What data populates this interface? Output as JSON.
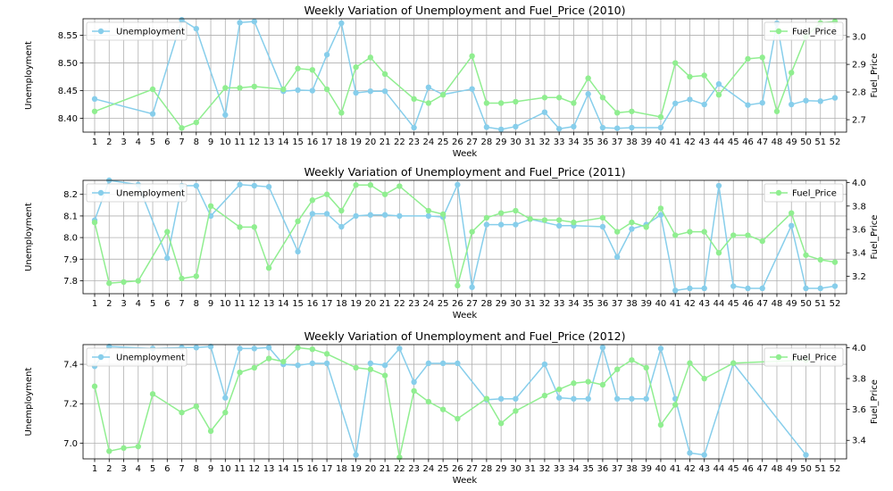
{
  "legend": {
    "unemployment": "Unemployment",
    "fuel": "Fuel_Price"
  },
  "colors": {
    "unemployment": "#87ceeb",
    "fuel": "#90ee90"
  },
  "chart_data": [
    {
      "type": "line",
      "title": "Weekly Variation of Unemployment and Fuel_Price (2010)",
      "xlabel": "Week",
      "ylabel": "Unemployment",
      "y2label": "Fuel_Price",
      "x_ticks": [
        1,
        2,
        3,
        4,
        5,
        6,
        7,
        8,
        9,
        10,
        11,
        12,
        13,
        14,
        15,
        16,
        17,
        18,
        19,
        20,
        21,
        22,
        23,
        24,
        25,
        26,
        27,
        28,
        29,
        30,
        31,
        32,
        33,
        34,
        35,
        36,
        37,
        38,
        39,
        40,
        41,
        42,
        43,
        44,
        45,
        46,
        47,
        48,
        49,
        50,
        51,
        52
      ],
      "ylim": [
        8.375,
        8.58
      ],
      "y_ticks": [
        8.4,
        8.45,
        8.5,
        8.55
      ],
      "y_tick_labels": [
        "8.40",
        "8.45",
        "8.50",
        "8.55"
      ],
      "y2lim": [
        2.655,
        3.065
      ],
      "y2_ticks": [
        2.7,
        2.8,
        2.9,
        3.0
      ],
      "y2_tick_labels": [
        "2.7",
        "2.8",
        "2.9",
        "3.0"
      ],
      "grid": true,
      "legend_placement": [
        "upper left",
        "upper right"
      ],
      "series": [
        {
          "name": "Unemployment",
          "axis": "left",
          "x": [
            1,
            5,
            7,
            8,
            10,
            11,
            12,
            14,
            15,
            16,
            17,
            18,
            19,
            20,
            21,
            23,
            24,
            25,
            27,
            28,
            29,
            30,
            32,
            33,
            34,
            35,
            36,
            37,
            38,
            40,
            41,
            42,
            43,
            44,
            46,
            47,
            48,
            49,
            50,
            51,
            52
          ],
          "values": [
            8.435,
            8.408,
            8.578,
            8.562,
            8.406,
            8.573,
            8.575,
            8.449,
            8.451,
            8.45,
            8.515,
            8.572,
            8.446,
            8.449,
            8.449,
            8.383,
            8.456,
            8.443,
            8.453,
            8.384,
            8.38,
            8.385,
            8.411,
            8.381,
            8.385,
            8.444,
            8.383,
            8.382,
            8.383,
            8.383,
            8.427,
            8.434,
            8.425,
            8.462,
            8.424,
            8.428,
            8.572,
            8.425,
            8.432,
            8.431,
            8.437
          ]
        },
        {
          "name": "Fuel_Price",
          "axis": "right",
          "x": [
            1,
            5,
            7,
            8,
            10,
            11,
            12,
            14,
            15,
            16,
            17,
            18,
            19,
            20,
            21,
            23,
            24,
            25,
            27,
            28,
            29,
            30,
            32,
            33,
            34,
            35,
            36,
            37,
            38,
            40,
            41,
            42,
            43,
            44,
            46,
            47,
            48,
            49,
            50,
            51,
            52
          ],
          "values": [
            2.73,
            2.81,
            2.67,
            2.69,
            2.815,
            2.815,
            2.82,
            2.81,
            2.885,
            2.88,
            2.81,
            2.725,
            2.89,
            2.925,
            2.865,
            2.775,
            2.76,
            2.79,
            2.93,
            2.76,
            2.76,
            2.765,
            2.78,
            2.78,
            2.76,
            2.85,
            2.78,
            2.725,
            2.73,
            2.71,
            2.905,
            2.855,
            2.86,
            2.79,
            2.92,
            2.925,
            2.73,
            2.87,
            3.0,
            3.05,
            3.055
          ]
        }
      ]
    },
    {
      "type": "line",
      "title": "Weekly Variation of Unemployment and Fuel_Price (2011)",
      "xlabel": "Week",
      "ylabel": "Unemployment",
      "y2label": "Fuel_Price",
      "x_ticks": [
        1,
        2,
        3,
        4,
        5,
        6,
        7,
        8,
        9,
        10,
        11,
        12,
        13,
        14,
        15,
        16,
        17,
        18,
        19,
        20,
        21,
        22,
        23,
        24,
        25,
        26,
        27,
        28,
        29,
        30,
        31,
        32,
        33,
        34,
        35,
        36,
        37,
        38,
        39,
        40,
        41,
        42,
        43,
        44,
        45,
        46,
        47,
        48,
        49,
        50,
        51,
        52
      ],
      "ylim": [
        7.74,
        8.265
      ],
      "y_ticks": [
        7.8,
        7.9,
        8.0,
        8.1,
        8.2
      ],
      "y_tick_labels": [
        "7.8",
        "7.9",
        "8.0",
        "8.1",
        "8.2"
      ],
      "y2lim": [
        3.05,
        4.02
      ],
      "y2_ticks": [
        3.2,
        3.4,
        3.6,
        3.8,
        4.0
      ],
      "y2_tick_labels": [
        "3.2",
        "3.4",
        "3.6",
        "3.8",
        "4.0"
      ],
      "grid": true,
      "legend_placement": [
        "upper left",
        "upper right"
      ],
      "series": [
        {
          "name": "Unemployment",
          "axis": "left",
          "x": [
            1,
            2,
            4,
            6,
            7,
            8,
            9,
            11,
            12,
            13,
            15,
            16,
            17,
            18,
            19,
            20,
            21,
            22,
            24,
            25,
            26,
            27,
            28,
            29,
            30,
            31,
            33,
            34,
            36,
            37,
            38,
            39,
            40,
            41,
            42,
            43,
            44,
            45,
            46,
            47,
            49,
            50,
            51,
            52
          ],
          "values": [
            8.08,
            8.265,
            8.245,
            7.905,
            8.24,
            8.24,
            8.1,
            8.245,
            8.24,
            8.235,
            7.935,
            8.11,
            8.11,
            8.05,
            8.1,
            8.105,
            8.105,
            8.1,
            8.1,
            8.095,
            8.245,
            7.77,
            8.06,
            8.06,
            8.06,
            8.085,
            8.055,
            8.055,
            8.05,
            7.91,
            8.04,
            8.06,
            8.105,
            7.755,
            7.765,
            7.765,
            8.24,
            7.775,
            7.765,
            7.765,
            8.055,
            7.765,
            7.765,
            7.775
          ]
        },
        {
          "name": "Fuel_Price",
          "axis": "right",
          "x": [
            1,
            2,
            3,
            4,
            6,
            7,
            8,
            9,
            11,
            12,
            13,
            15,
            16,
            17,
            18,
            19,
            20,
            21,
            22,
            24,
            25,
            26,
            27,
            28,
            29,
            30,
            31,
            32,
            33,
            34,
            36,
            37,
            38,
            39,
            40,
            41,
            42,
            43,
            44,
            45,
            46,
            47,
            49,
            50,
            51,
            52
          ],
          "values": [
            3.66,
            3.14,
            3.15,
            3.16,
            3.58,
            3.18,
            3.2,
            3.8,
            3.62,
            3.62,
            3.27,
            3.67,
            3.85,
            3.9,
            3.76,
            3.98,
            3.98,
            3.9,
            3.97,
            3.76,
            3.73,
            3.12,
            3.58,
            3.7,
            3.74,
            3.76,
            3.69,
            3.68,
            3.68,
            3.66,
            3.7,
            3.58,
            3.66,
            3.62,
            3.78,
            3.55,
            3.58,
            3.58,
            3.4,
            3.55,
            3.55,
            3.5,
            3.74,
            3.38,
            3.34,
            3.32
          ]
        }
      ]
    },
    {
      "type": "line",
      "title": "Weekly Variation of Unemployment and Fuel_Price (2012)",
      "xlabel": "Week",
      "ylabel": "Unemployment",
      "y2label": "Fuel_Price",
      "x_ticks": [
        1,
        2,
        3,
        4,
        5,
        6,
        7,
        8,
        9,
        10,
        11,
        12,
        13,
        14,
        15,
        16,
        17,
        18,
        19,
        20,
        21,
        22,
        23,
        24,
        25,
        26,
        27,
        28,
        29,
        30,
        31,
        32,
        33,
        34,
        35,
        36,
        37,
        38,
        39,
        40,
        41,
        42,
        43,
        44,
        45,
        46,
        47,
        48,
        49,
        50,
        51,
        52
      ],
      "ylim": [
        6.92,
        7.5
      ],
      "y_ticks": [
        7.0,
        7.2,
        7.4
      ],
      "y_tick_labels": [
        "7.0",
        "7.2",
        "7.4"
      ],
      "y2lim": [
        3.28,
        4.02
      ],
      "y2_ticks": [
        3.4,
        3.6,
        3.8,
        4.0
      ],
      "y2_tick_labels": [
        "3.4",
        "3.6",
        "3.8",
        "4.0"
      ],
      "grid": true,
      "legend_placement": [
        "upper left",
        "upper right"
      ],
      "series": [
        {
          "name": "Unemployment",
          "axis": "left",
          "x": [
            1,
            2,
            5,
            7,
            8,
            9,
            10,
            11,
            12,
            13,
            14,
            15,
            16,
            17,
            19,
            20,
            21,
            22,
            23,
            24,
            25,
            26,
            28,
            29,
            30,
            32,
            33,
            34,
            35,
            36,
            37,
            38,
            39,
            40,
            41,
            42,
            43,
            45,
            50
          ],
          "values": [
            7.39,
            7.49,
            7.48,
            7.485,
            7.485,
            7.49,
            7.23,
            7.48,
            7.48,
            7.485,
            7.4,
            7.395,
            7.405,
            7.405,
            6.94,
            7.405,
            7.395,
            7.48,
            7.31,
            7.405,
            7.405,
            7.405,
            7.22,
            7.225,
            7.225,
            7.4,
            7.23,
            7.225,
            7.225,
            7.485,
            7.225,
            7.225,
            7.225,
            7.48,
            7.225,
            6.95,
            6.94,
            7.405,
            6.94
          ]
        },
        {
          "name": "Fuel_Price",
          "axis": "right",
          "x": [
            1,
            2,
            3,
            4,
            5,
            7,
            8,
            9,
            10,
            11,
            12,
            13,
            14,
            15,
            16,
            17,
            19,
            20,
            21,
            22,
            23,
            24,
            25,
            26,
            28,
            29,
            30,
            32,
            33,
            34,
            35,
            36,
            37,
            38,
            39,
            40,
            41,
            42,
            43,
            45,
            50
          ],
          "values": [
            3.75,
            3.33,
            3.35,
            3.36,
            3.7,
            3.58,
            3.62,
            3.46,
            3.58,
            3.84,
            3.87,
            3.93,
            3.91,
            4.0,
            3.99,
            3.96,
            3.87,
            3.86,
            3.82,
            3.29,
            3.72,
            3.65,
            3.6,
            3.54,
            3.67,
            3.51,
            3.59,
            3.69,
            3.73,
            3.77,
            3.78,
            3.76,
            3.86,
            3.92,
            3.87,
            3.5,
            3.63,
            3.9,
            3.8,
            3.9,
            3.92
          ]
        }
      ]
    }
  ]
}
